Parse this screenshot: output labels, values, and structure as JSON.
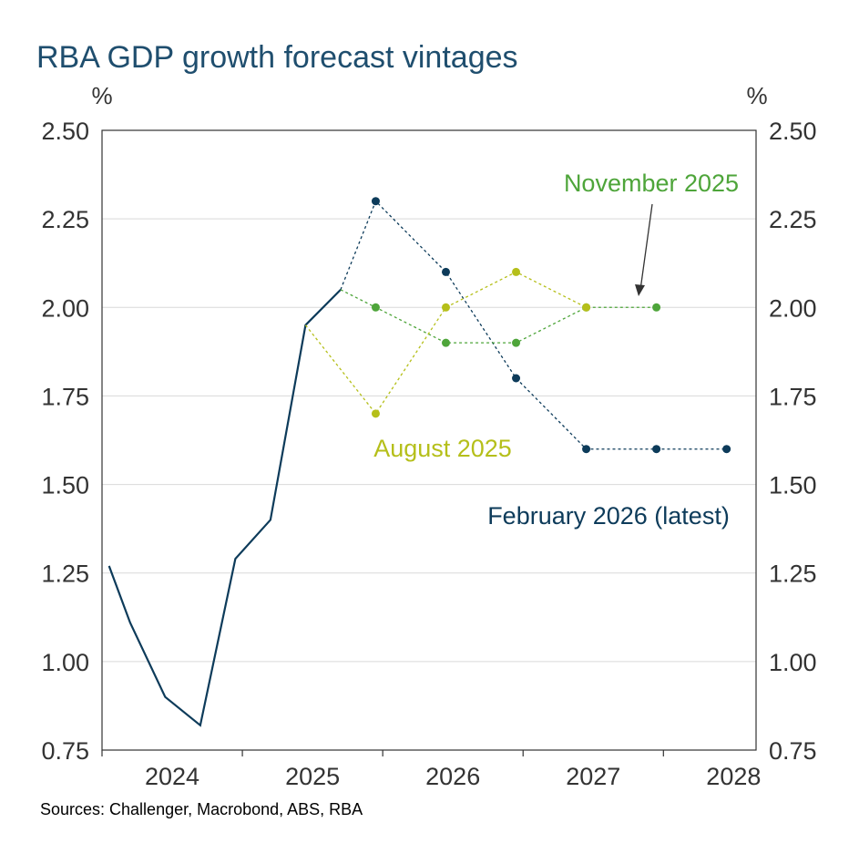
{
  "chart_data": {
    "type": "line",
    "title": "RBA GDP growth forecast vintages",
    "y_unit": "%",
    "y2_unit": "%",
    "source": "Sources: Challenger, Macrobond, ABS, RBA",
    "xlim": [
      2024,
      2028.66
    ],
    "xticks": [
      {
        "value": 2024.5,
        "label": "2024"
      },
      {
        "value": 2025.5,
        "label": "2025"
      },
      {
        "value": 2026.5,
        "label": "2026"
      },
      {
        "value": 2027.5,
        "label": "2027"
      },
      {
        "value": 2028.5,
        "label": "2028"
      }
    ],
    "ylim": [
      0.75,
      2.5
    ],
    "yticks": [
      {
        "value": 0.75,
        "label": "0.75"
      },
      {
        "value": 1,
        "label": "1.00"
      },
      {
        "value": 1.25,
        "label": "1.25"
      },
      {
        "value": 1.5,
        "label": "1.50"
      },
      {
        "value": 1.75,
        "label": "1.75"
      },
      {
        "value": 2,
        "label": "2.00"
      },
      {
        "value": 2.25,
        "label": "2.25"
      },
      {
        "value": 2.5,
        "label": "2.50"
      }
    ],
    "y2lim": [
      0.75,
      2.5
    ],
    "y2ticks": [
      {
        "value": 0.75,
        "label": "0.75"
      },
      {
        "value": 1,
        "label": "1.00"
      },
      {
        "value": 1.25,
        "label": "1.25"
      },
      {
        "value": 1.5,
        "label": "1.50"
      },
      {
        "value": 1.75,
        "label": "1.75"
      },
      {
        "value": 2,
        "label": "2.00"
      },
      {
        "value": 2.25,
        "label": "2.25"
      },
      {
        "value": 2.5,
        "label": "2.50"
      }
    ],
    "grid": true,
    "series": [
      {
        "color": "#0d3b5a",
        "dashed": false,
        "x": [
          2024.05,
          2024.2,
          2024.45,
          2024.7,
          2024.95,
          2025.2,
          2025.45,
          2025.7
        ],
        "values": [
          1.27,
          1.11,
          0.9,
          0.82,
          1.29,
          1.4,
          1.95,
          2.05
        ]
      },
      {
        "name": "February 2026 (latest)",
        "color": "#0d3b5a",
        "dashed": true,
        "x": [
          2025.7,
          2025.95,
          2026.45,
          2026.95,
          2027.45,
          2027.95,
          2028.45
        ],
        "values": [
          2.05,
          2.3,
          2.1,
          1.8,
          1.6,
          1.6,
          1.6
        ]
      },
      {
        "name": "November 2025",
        "color": "#4ea53a",
        "dashed": true,
        "x": [
          2025.7,
          2025.95,
          2026.45,
          2026.95,
          2027.45,
          2027.95
        ],
        "values": [
          2.05,
          2.0,
          1.9,
          1.9,
          2.0,
          2.0
        ]
      },
      {
        "name": "August 2025",
        "color": "#b5bf1a",
        "dashed": true,
        "x": [
          2025.45,
          2025.95,
          2026.45,
          2026.95,
          2027.45
        ],
        "values": [
          1.95,
          1.7,
          2.0,
          2.1,
          2.0
        ]
      }
    ]
  }
}
